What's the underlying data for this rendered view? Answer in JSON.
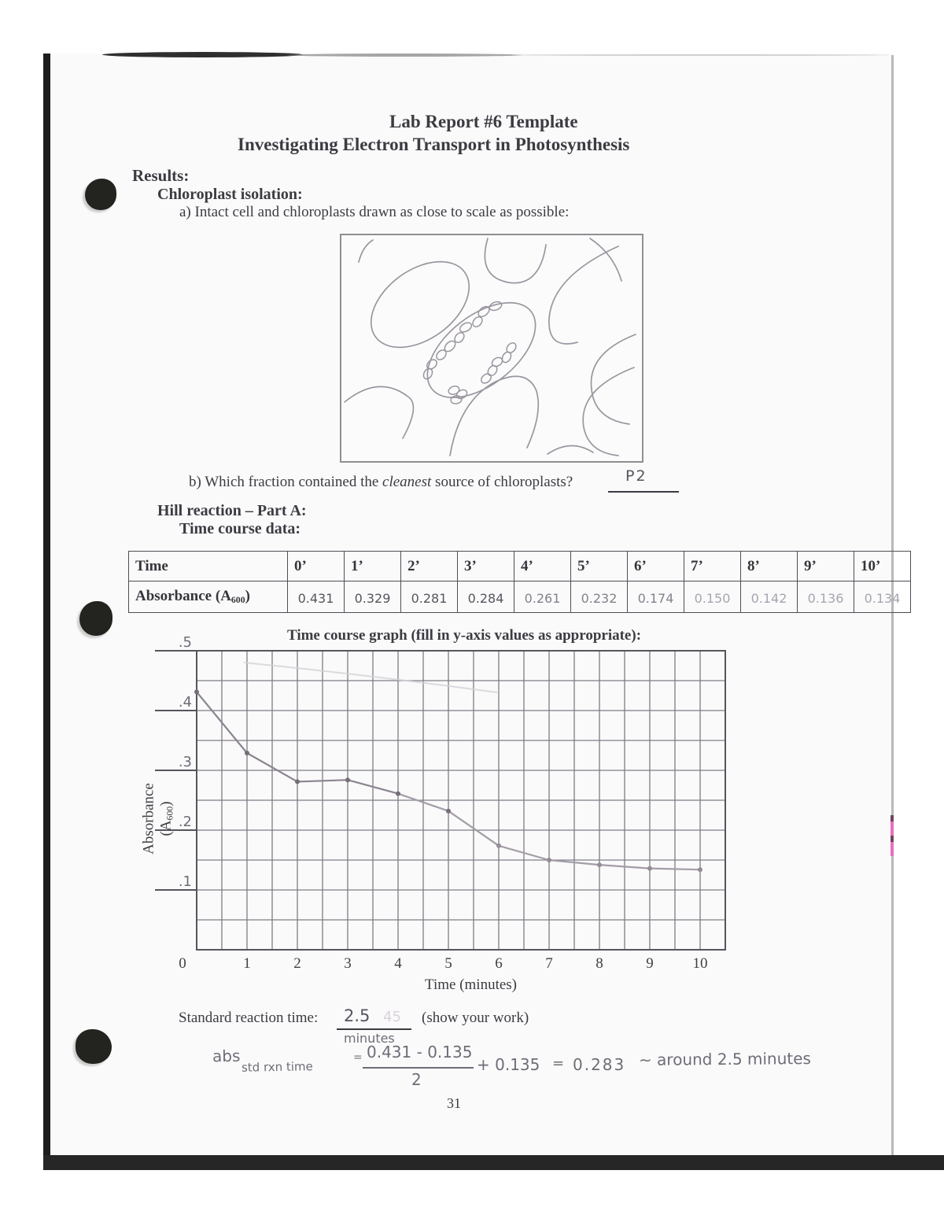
{
  "colors": {
    "pencil": "#6d6d78",
    "ink_dark": "#55555e",
    "print": "#3b3b42",
    "pink_mark": "#e76fbe"
  },
  "header": {
    "title_line1": "Lab Report #6 Template",
    "title_line2": "Investigating Electron Transport in Photosynthesis"
  },
  "results": {
    "heading": "Results:",
    "subheading": "Chloroplast isolation:",
    "item_a": "a) Intact cell and chloroplasts drawn as close to scale as possible:",
    "item_b": {
      "prefix": "b) Which fraction contained the ",
      "italic": "cleanest",
      "suffix": " source of chloroplasts?",
      "answer": "P2"
    }
  },
  "hill": {
    "heading": "Hill reaction – Part A:",
    "subheading": "Time course data:",
    "table": {
      "time_label": "Time",
      "absorbance_label_pre": "Absorbance (A",
      "absorbance_label_sub": "600",
      "absorbance_label_post": ")",
      "times": [
        "0’",
        "1’",
        "2’",
        "3’",
        "4’",
        "5’",
        "6’",
        "7’",
        "8’",
        "9’",
        "10’"
      ],
      "absorbance": [
        "0.431",
        "0.329",
        "0.281",
        "0.284",
        "0.261",
        "0.232",
        "0.174",
        "0.150",
        "0.142",
        "0.136",
        "0.134"
      ]
    }
  },
  "graph": {
    "title": "Time course graph (fill in y-axis values as appropriate):",
    "ylabel_pre": "Absorbance (A",
    "ylabel_sub": "600",
    "ylabel_post": ")",
    "xlabel": "Time (minutes)"
  },
  "chart_data": {
    "type": "line",
    "title": "Time course graph (fill in y-axis values as appropriate):",
    "xlabel": "Time (minutes)",
    "ylabel": "Absorbance (A600)",
    "x": [
      0,
      1,
      2,
      3,
      4,
      5,
      6,
      7,
      8,
      9,
      10
    ],
    "values": [
      0.431,
      0.329,
      0.281,
      0.284,
      0.261,
      0.232,
      0.174,
      0.15,
      0.142,
      0.136,
      0.134
    ],
    "xlim": [
      0,
      10.5
    ],
    "ylim": [
      0,
      0.5
    ],
    "x_gridline_step": 0.5,
    "y_gridline_step": 0.05,
    "x_tick_labels": [
      "0",
      "1",
      "2",
      "3",
      "4",
      "5",
      "6",
      "7",
      "8",
      "9",
      "10"
    ],
    "y_tick_labels": [
      ".5",
      ".4",
      ".3",
      ".2",
      ".1"
    ],
    "grid": true,
    "marker": "point",
    "style": "hand-plotted pencil line on printed grid"
  },
  "standard_reaction": {
    "label": "Standard reaction time:",
    "answer": "2.5",
    "answer_ghost": "45",
    "answer_unit": "minutes",
    "suffix": "(show your work)",
    "work": {
      "lhs": "abs",
      "lhs_sub": "std rxn time",
      "eq1": "=",
      "numerator": "0.431 - 0.135",
      "denominator": "2",
      "plus": "+ 0.135",
      "eq2": "=",
      "result": "0.283",
      "note": "~ around 2.5 minutes"
    }
  },
  "footer": {
    "page_number": "31"
  }
}
